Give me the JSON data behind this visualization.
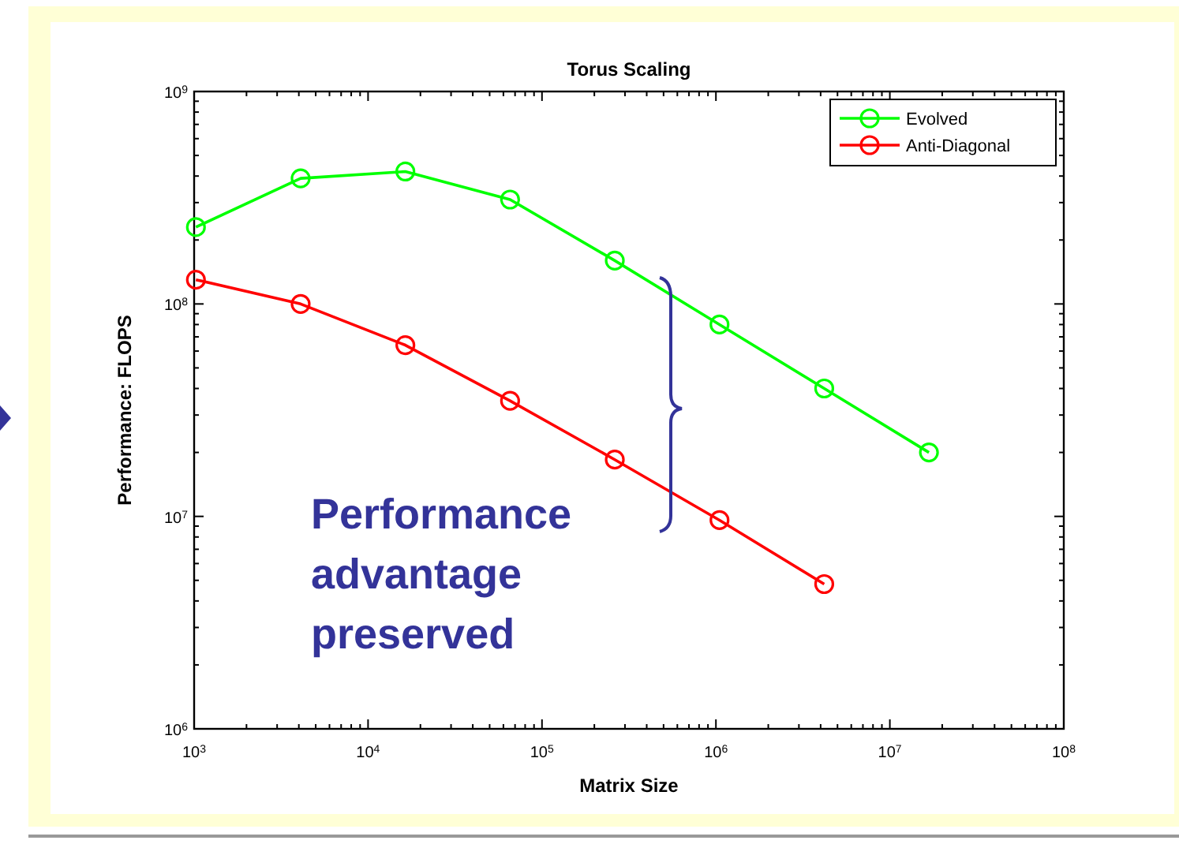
{
  "chart_data": {
    "type": "line",
    "title": "Torus Scaling",
    "xlabel": "Matrix Size",
    "ylabel": "Performance: FLOPS",
    "x": [
      1024,
      4096,
      16384,
      65536,
      262144,
      1048576,
      4194304,
      16777216
    ],
    "series": [
      {
        "name": "Evolved",
        "color": "#00ff00",
        "values": [
          230000000.0,
          390000000.0,
          420000000.0,
          310000000.0,
          160000000.0,
          80000000.0,
          40000000.0,
          20000000.0
        ]
      },
      {
        "name": "Anti-Diagonal",
        "color": "#ff0000",
        "values": [
          130000000.0,
          100000000.0,
          64000000.0,
          35000000.0,
          18500000.0,
          9600000.0,
          4800000.0,
          null
        ]
      }
    ],
    "log": "xy",
    "xlim": [
      1000,
      100000000
    ],
    "ylim": [
      1000000,
      1000000000
    ],
    "xticks": [
      {
        "value": 1000,
        "label": "10$^{3}$"
      },
      {
        "value": 10000,
        "label": "10$^{4}$"
      },
      {
        "value": 100000,
        "label": "10$^{5}$"
      },
      {
        "value": 1000000,
        "label": "10$^{6}$"
      },
      {
        "value": 10000000,
        "label": "10$^{7}$"
      },
      {
        "value": 100000000,
        "label": "10$^{8}$"
      }
    ],
    "yticks": [
      {
        "value": 1000000,
        "label": "10$^{6}$"
      },
      {
        "value": 10000000,
        "label": "10$^{7}$"
      },
      {
        "value": 100000000,
        "label": "10$^{8}$"
      },
      {
        "value": 1000000000,
        "label": "10$^{9}$"
      }
    ],
    "marker": "circle",
    "line_style": "solid",
    "grid": false,
    "legend": "top right",
    "annotations": [
      "Performance advantage preserved"
    ]
  }
}
